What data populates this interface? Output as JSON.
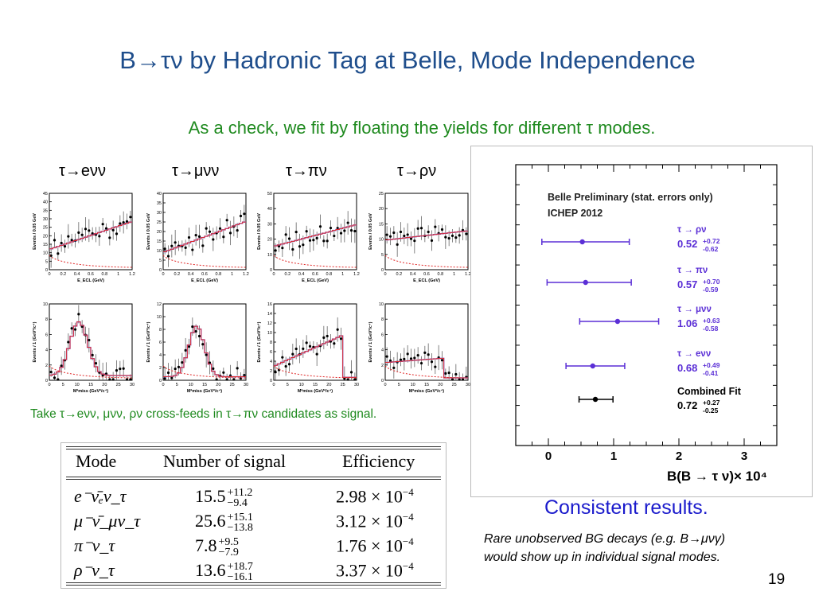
{
  "title": "B→τν by Hadronic Tag at Belle, Mode Independence",
  "subtitle": "As a check, we fit by floating the yields for different τ modes.",
  "mode_labels": [
    "τ→eνν",
    "τ→μνν",
    "τ→πν",
    "τ→ρν"
  ],
  "top_row_panels": {
    "ylabel": "Events / 0.05 GeV",
    "xlabel": "E_ECL (GeV)",
    "xticks": [
      "0",
      "0.2",
      "0.4",
      "0.6",
      "0.8",
      "1",
      "1.2"
    ],
    "yticks": [
      [
        "0",
        "5",
        "10",
        "15",
        "20",
        "25",
        "30",
        "35",
        "40",
        "45"
      ],
      [
        "0",
        "5",
        "10",
        "15",
        "20",
        "25",
        "30",
        "35",
        "40"
      ],
      [
        "0",
        "10",
        "20",
        "30",
        "40",
        "50"
      ],
      [
        "0",
        "5",
        "10",
        "15",
        "20",
        "25"
      ]
    ]
  },
  "bottom_row_panels": {
    "ylabel": "Events / 1 (GeV²/c⁴)",
    "xlabel": "M²miss (GeV²/c⁴)",
    "xticks": [
      "0",
      "5",
      "10",
      "15",
      "20",
      "25",
      "30"
    ],
    "yticks": [
      [
        "0",
        "2",
        "4",
        "6",
        "8",
        "10"
      ],
      [
        "0",
        "2",
        "4",
        "6",
        "8",
        "10",
        "12"
      ],
      [
        "0",
        "2",
        "4",
        "6",
        "8",
        "10",
        "12",
        "14",
        "16"
      ],
      [
        "0",
        "2",
        "4",
        "6",
        "8",
        "10"
      ]
    ]
  },
  "crossfeed_note": "Take τ→eνν, μνν, ρν cross-feeds in τ→πν candidates as signal.",
  "table": {
    "headers": [
      "Mode",
      "Number of signal",
      "Efficiency"
    ],
    "rows": [
      {
        "mode": "e⁻ν̄ₑν_τ",
        "signal": "15.5",
        "up": "+11.2",
        "down": "−9.4",
        "eff": "2.98 × 10",
        "exp": "−4"
      },
      {
        "mode": "μ⁻ν̄_μν_τ",
        "signal": "25.6",
        "up": "+15.1",
        "down": "−13.8",
        "eff": "3.12 × 10",
        "exp": "−4"
      },
      {
        "mode": "π⁻ν_τ",
        "signal": "7.8",
        "up": "+9.5",
        "down": "−7.9",
        "eff": "1.76 × 10",
        "exp": "−4"
      },
      {
        "mode": "ρ⁻ν_τ",
        "signal": "13.6",
        "up": "+18.7",
        "down": "−16.1",
        "eff": "3.37 × 10",
        "exp": "−4"
      }
    ]
  },
  "chart_data": {
    "type": "scatter",
    "title": "Belle Preliminary (stat. errors only)",
    "subtitle": "ICHEP 2012",
    "xlabel": "B(B → τ ν)× 10⁴",
    "xlim": [
      -0.5,
      3.5
    ],
    "xticks": [
      0,
      1,
      2,
      3
    ],
    "series": [
      {
        "name": "τ → ρν",
        "value": 0.52,
        "err_up": 0.72,
        "err_down": 0.62,
        "color": "#5b2fd6"
      },
      {
        "name": "τ → πν",
        "value": 0.57,
        "err_up": 0.7,
        "err_down": 0.59,
        "color": "#5b2fd6"
      },
      {
        "name": "τ → μνν",
        "value": 1.06,
        "err_up": 0.63,
        "err_down": 0.58,
        "color": "#5b2fd6"
      },
      {
        "name": "τ → eνν",
        "value": 0.68,
        "err_up": 0.49,
        "err_down": 0.41,
        "color": "#5b2fd6"
      },
      {
        "name": "Combined Fit",
        "value": 0.72,
        "err_up": 0.27,
        "err_down": 0.25,
        "color": "#000000"
      }
    ],
    "value_labels": [
      "0.52",
      "0.57",
      "1.06",
      "0.68",
      "0.72"
    ],
    "up_labels": [
      "+0.72",
      "+0.70",
      "+0.63",
      "+0.49",
      "+0.27"
    ],
    "down_labels": [
      "-0.62",
      "-0.59",
      "-0.58",
      "-0.41",
      "-0.25"
    ]
  },
  "consistent": "Consistent results.",
  "rare_line1": "Rare unobserved BG decays (e.g. B→μνγ)",
  "rare_line2": "would show up in individual signal modes.",
  "page_number": "19",
  "colors": {
    "title": "#1f4e8c",
    "subtitle": "#1f8a1f",
    "consistent": "#1a1acc",
    "fit": "#5b2fd6",
    "hist": "#e02828"
  }
}
